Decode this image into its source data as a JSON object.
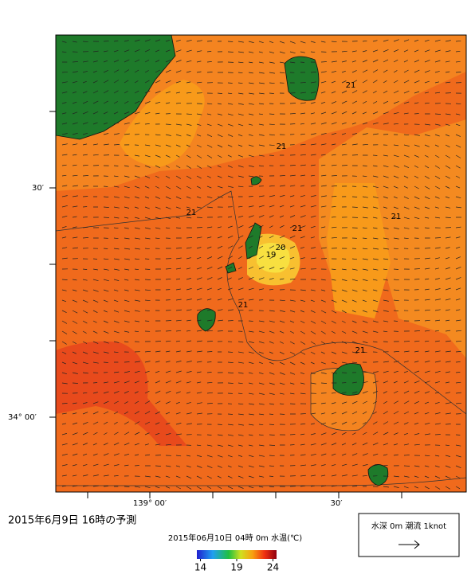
{
  "map": {
    "title": "2015年6月9日 16時の予測",
    "subtitle": "2015年06月10日 04時 0m 水温(℃)",
    "lat_labels": [
      "30′",
      "34° 00′"
    ],
    "lon_labels": [
      "139° 00′",
      "30′"
    ],
    "contour_labels": [
      "21",
      "21",
      "21",
      "21",
      "21",
      "21",
      "21",
      "20",
      "19"
    ],
    "colorbar": {
      "lim": [
        13.5,
        24.5
      ],
      "ticks": [
        14,
        19,
        24
      ]
    },
    "legend": {
      "label": "水深 0m 潮流 1knot"
    }
  }
}
